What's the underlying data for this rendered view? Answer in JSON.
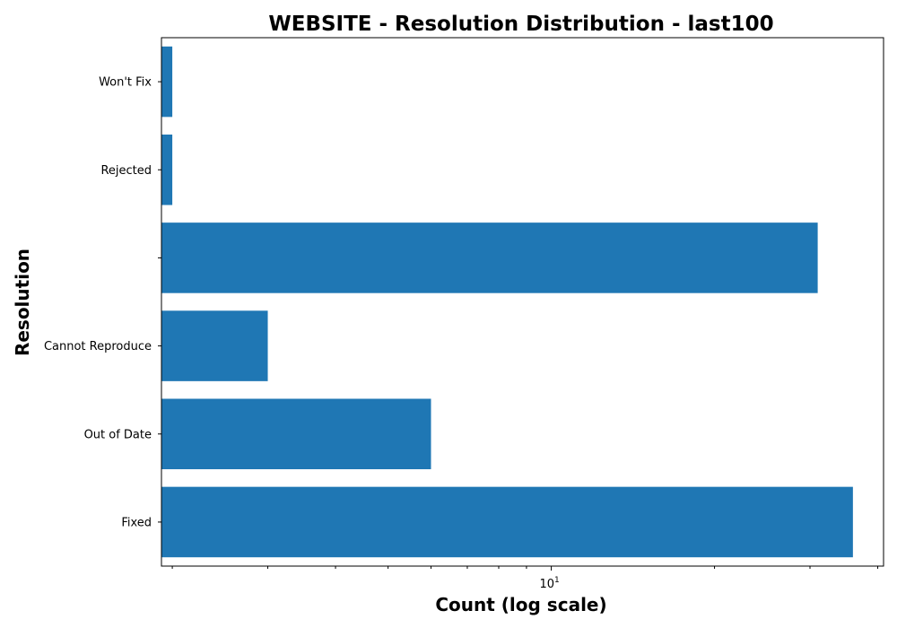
{
  "chart_data": {
    "type": "bar",
    "orientation": "horizontal",
    "title": "WEBSITE - Resolution Distribution - last100",
    "xlabel": "Count (log scale)",
    "ylabel": "Resolution",
    "x_scale": "log",
    "xlim": [
      1.91,
      41
    ],
    "x_tick_label": {
      "base": "10",
      "exponent": "1"
    },
    "categories": [
      "Fixed",
      "Out of Date",
      "Cannot Reproduce",
      "",
      "Rejected",
      "Won't Fix"
    ],
    "values": [
      36,
      6,
      3,
      31,
      2,
      2
    ],
    "bar_color": "#1f77b4",
    "grid": false
  }
}
